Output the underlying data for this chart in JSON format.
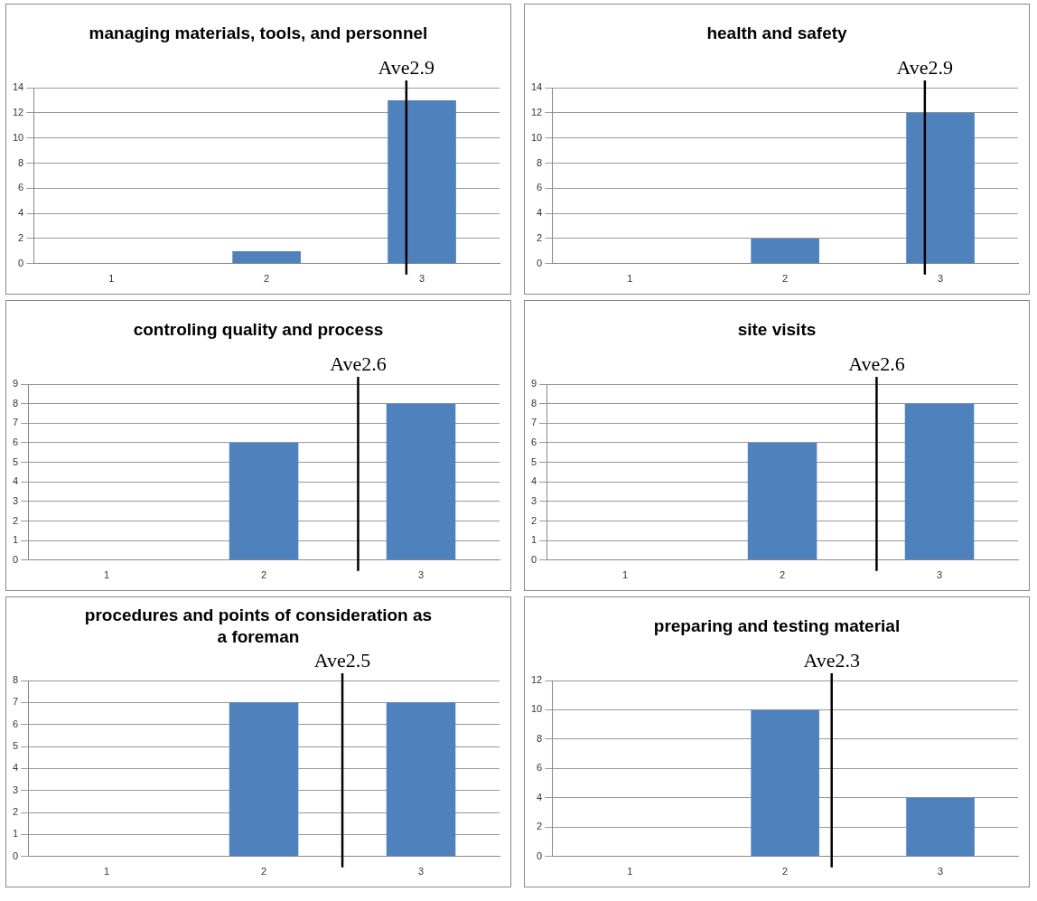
{
  "chart_data": [
    {
      "type": "bar",
      "title": "managing materials, tools, and personnel",
      "x": [
        1,
        2,
        3
      ],
      "xlim": [
        0.5,
        3.5
      ],
      "xticks": [
        1,
        2,
        3
      ],
      "values": [
        0,
        1,
        13
      ],
      "color": "#4f81bd",
      "ylim": [
        0,
        14
      ],
      "yticks": [
        0,
        2,
        4,
        6,
        8,
        10,
        12,
        14
      ],
      "grid": "y",
      "legend": false,
      "ref_lines": [
        {
          "axis": "x",
          "value": 2.9,
          "label": "Ave2.9",
          "color": "#000000"
        }
      ]
    },
    {
      "type": "bar",
      "title": "health and safety",
      "x": [
        1,
        2,
        3
      ],
      "xlim": [
        0.5,
        3.5
      ],
      "xticks": [
        1,
        2,
        3
      ],
      "values": [
        0,
        2,
        12
      ],
      "color": "#4f81bd",
      "ylim": [
        0,
        14
      ],
      "yticks": [
        0,
        2,
        4,
        6,
        8,
        10,
        12,
        14
      ],
      "grid": "y",
      "legend": false,
      "ref_lines": [
        {
          "axis": "x",
          "value": 2.9,
          "label": "Ave2.9",
          "color": "#000000"
        }
      ]
    },
    {
      "type": "bar",
      "title": "controling quality and process",
      "x": [
        1,
        2,
        3
      ],
      "xlim": [
        0.5,
        3.5
      ],
      "xticks": [
        1,
        2,
        3
      ],
      "values": [
        0,
        6,
        8
      ],
      "color": "#4f81bd",
      "ylim": [
        0,
        9
      ],
      "yticks": [
        0,
        1,
        2,
        3,
        4,
        5,
        6,
        7,
        8,
        9
      ],
      "grid": "y",
      "legend": false,
      "ref_lines": [
        {
          "axis": "x",
          "value": 2.6,
          "label": "Ave2.6",
          "color": "#000000"
        }
      ]
    },
    {
      "type": "bar",
      "title": "site visits",
      "x": [
        1,
        2,
        3
      ],
      "xlim": [
        0.5,
        3.5
      ],
      "xticks": [
        1,
        2,
        3
      ],
      "values": [
        0,
        6,
        8
      ],
      "color": "#4f81bd",
      "ylim": [
        0,
        9
      ],
      "yticks": [
        0,
        1,
        2,
        3,
        4,
        5,
        6,
        7,
        8,
        9
      ],
      "grid": "y",
      "legend": false,
      "ref_lines": [
        {
          "axis": "x",
          "value": 2.6,
          "label": "Ave2.6",
          "color": "#000000"
        }
      ]
    },
    {
      "type": "bar",
      "title": "procedures and points of consideration as a foreman",
      "x": [
        1,
        2,
        3
      ],
      "xlim": [
        0.5,
        3.5
      ],
      "xticks": [
        1,
        2,
        3
      ],
      "values": [
        0,
        7,
        7
      ],
      "color": "#4f81bd",
      "ylim": [
        0,
        8
      ],
      "yticks": [
        0,
        1,
        2,
        3,
        4,
        5,
        6,
        7,
        8
      ],
      "grid": "y",
      "legend": false,
      "ref_lines": [
        {
          "axis": "x",
          "value": 2.5,
          "label": "Ave2.5",
          "color": "#000000"
        }
      ]
    },
    {
      "type": "bar",
      "title": "preparing and testing material",
      "x": [
        1,
        2,
        3
      ],
      "xlim": [
        0.5,
        3.5
      ],
      "xticks": [
        1,
        2,
        3
      ],
      "values": [
        0,
        10,
        4
      ],
      "color": "#4f81bd",
      "ylim": [
        0,
        12
      ],
      "yticks": [
        0,
        2,
        4,
        6,
        8,
        10,
        12
      ],
      "grid": "y",
      "legend": false,
      "ref_lines": [
        {
          "axis": "x",
          "value": 2.3,
          "label": "Ave2.3",
          "color": "#000000"
        }
      ]
    }
  ]
}
